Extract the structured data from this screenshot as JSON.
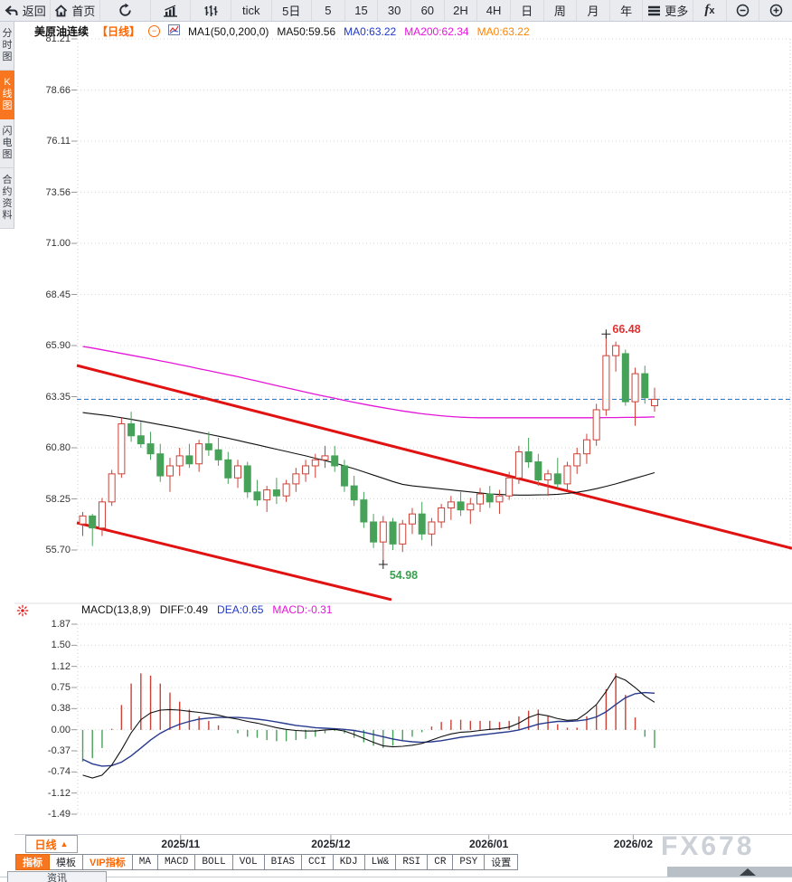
{
  "toolbar": {
    "items": [
      {
        "name": "back",
        "label": "返回",
        "icon": "back-icon"
      },
      {
        "name": "home",
        "label": "首页",
        "icon": "home-icon"
      },
      {
        "name": "refresh",
        "label": "",
        "icon": "refresh-icon"
      },
      {
        "name": "chart-style-bars",
        "label": "",
        "icon": "bar-chart-icon"
      },
      {
        "name": "chart-style-volume",
        "label": "",
        "icon": "volume-icon"
      },
      {
        "name": "tick",
        "label": "tick"
      },
      {
        "name": "period-5d",
        "label": "5日"
      },
      {
        "name": "period-5m",
        "label": "5"
      },
      {
        "name": "period-15m",
        "label": "15"
      },
      {
        "name": "period-30m",
        "label": "30"
      },
      {
        "name": "period-60m",
        "label": "60"
      },
      {
        "name": "period-2h",
        "label": "2H"
      },
      {
        "name": "period-4h",
        "label": "4H"
      },
      {
        "name": "period-day",
        "label": "日"
      },
      {
        "name": "period-week",
        "label": "周"
      },
      {
        "name": "period-month",
        "label": "月"
      },
      {
        "name": "period-year",
        "label": "年"
      },
      {
        "name": "more",
        "label": "更多",
        "icon": "menu-icon"
      },
      {
        "name": "formula",
        "label": "",
        "icon": "fx-icon"
      },
      {
        "name": "zoom-out",
        "label": "",
        "icon": "zoom-out-icon"
      },
      {
        "name": "zoom-in",
        "label": "",
        "icon": "zoom-in-icon"
      }
    ]
  },
  "sidebar": {
    "items": [
      {
        "name": "time-chart",
        "label": "分时图",
        "active": false
      },
      {
        "name": "kline-chart",
        "label": "K线图",
        "active": true
      },
      {
        "name": "flash-chart",
        "label": "闪电图",
        "active": false
      },
      {
        "name": "contract-info",
        "label": "合约资料",
        "active": false
      }
    ]
  },
  "chart_header": {
    "symbol": "美原油连续",
    "period": "【日线】",
    "ma_group": "MA1(50,0,200,0)",
    "ma50": "MA50:59.56",
    "ma0_close": "MA0:63.22",
    "ma200": "MA200:62.34",
    "ma0_open": "MA0:63.22"
  },
  "macd_header": {
    "label": "MACD(13,8,9)",
    "diff": "DIFF:0.49",
    "dea": "DEA:0.65",
    "macd": "MACD:-0.31"
  },
  "bottom": {
    "period_label": "日线",
    "period_arrow": "▲",
    "tabs": [
      {
        "label": "指标",
        "active": true,
        "cjk": true
      },
      {
        "label": "模板",
        "cjk": true
      },
      {
        "label": "VIP指标",
        "vip": true,
        "cjk": true
      },
      {
        "label": "MA"
      },
      {
        "label": "MACD"
      },
      {
        "label": "BOLL"
      },
      {
        "label": "VOL"
      },
      {
        "label": "BIAS"
      },
      {
        "label": "CCI"
      },
      {
        "label": "KDJ"
      },
      {
        "label": "LW&"
      },
      {
        "label": "RSI"
      },
      {
        "label": "CR"
      },
      {
        "label": "PSY"
      },
      {
        "label": "设置",
        "cjk": true
      }
    ],
    "news_tab": "资讯",
    "watermark": "FX678"
  },
  "chart_data": {
    "type": "candlestick",
    "title": "美原油连续 日线",
    "price_ticks": [
      "81.21",
      "78.66",
      "76.11",
      "73.56",
      "71.00",
      "68.45",
      "65.90",
      "63.35",
      "60.80",
      "58.25",
      "55.70"
    ],
    "x_labels": [
      "2025/11",
      "2025/12",
      "2026/01",
      "2026/02"
    ],
    "x_label_indices": [
      10.1,
      25.6,
      41.9,
      56.8
    ],
    "last_price": 63.22,
    "high_annotation": {
      "label": "66.48",
      "value": 66.48,
      "index": 54
    },
    "low_annotation": {
      "label": "54.98",
      "value": 54.98,
      "index": 31
    },
    "candles_ohlc": [
      [
        57.0,
        57.6,
        56.4,
        57.4
      ],
      [
        57.4,
        57.5,
        55.9,
        56.8
      ],
      [
        56.8,
        58.3,
        56.4,
        58.1
      ],
      [
        58.1,
        59.7,
        57.9,
        59.5
      ],
      [
        59.5,
        62.3,
        59.3,
        62.0
      ],
      [
        62.0,
        62.6,
        61.1,
        61.4
      ],
      [
        61.4,
        62.1,
        60.8,
        61.0
      ],
      [
        61.0,
        61.6,
        60.2,
        60.5
      ],
      [
        60.5,
        61.0,
        59.1,
        59.4
      ],
      [
        59.4,
        60.3,
        58.6,
        59.9
      ],
      [
        59.9,
        60.8,
        59.4,
        60.4
      ],
      [
        60.4,
        61.0,
        59.8,
        60.0
      ],
      [
        60.0,
        61.2,
        59.6,
        61.0
      ],
      [
        61.0,
        61.6,
        60.4,
        60.7
      ],
      [
        60.7,
        61.3,
        59.9,
        60.2
      ],
      [
        60.2,
        60.6,
        59.0,
        59.3
      ],
      [
        59.3,
        60.2,
        58.8,
        59.9
      ],
      [
        59.9,
        60.1,
        58.3,
        58.6
      ],
      [
        58.6,
        59.2,
        57.9,
        58.2
      ],
      [
        58.2,
        58.9,
        57.6,
        58.7
      ],
      [
        58.7,
        59.3,
        58.0,
        58.4
      ],
      [
        58.4,
        59.2,
        58.1,
        59.0
      ],
      [
        59.0,
        59.8,
        58.6,
        59.5
      ],
      [
        59.5,
        60.2,
        59.1,
        59.9
      ],
      [
        59.9,
        60.5,
        59.3,
        60.2
      ],
      [
        60.2,
        60.9,
        59.8,
        60.4
      ],
      [
        60.4,
        60.9,
        59.6,
        59.9
      ],
      [
        59.9,
        60.2,
        58.6,
        58.9
      ],
      [
        58.9,
        59.4,
        57.9,
        58.2
      ],
      [
        58.2,
        58.6,
        56.8,
        57.1
      ],
      [
        57.1,
        57.5,
        55.8,
        56.1
      ],
      [
        56.1,
        57.4,
        54.98,
        57.1
      ],
      [
        57.1,
        57.3,
        55.7,
        56.0
      ],
      [
        56.0,
        57.2,
        55.6,
        57.0
      ],
      [
        57.0,
        57.8,
        56.5,
        57.5
      ],
      [
        57.5,
        58.1,
        56.2,
        56.5
      ],
      [
        56.5,
        57.3,
        55.9,
        57.1
      ],
      [
        57.1,
        58.0,
        56.8,
        57.8
      ],
      [
        57.8,
        58.4,
        57.2,
        58.1
      ],
      [
        58.1,
        58.6,
        57.4,
        57.7
      ],
      [
        57.7,
        58.3,
        57.0,
        58.0
      ],
      [
        58.0,
        58.8,
        57.6,
        58.5
      ],
      [
        58.5,
        58.9,
        57.8,
        58.1
      ],
      [
        58.1,
        58.7,
        57.5,
        58.4
      ],
      [
        58.4,
        59.6,
        58.2,
        59.3
      ],
      [
        59.3,
        60.9,
        59.0,
        60.6
      ],
      [
        60.6,
        61.3,
        59.8,
        60.1
      ],
      [
        60.1,
        60.5,
        58.9,
        59.2
      ],
      [
        59.2,
        59.7,
        58.4,
        59.5
      ],
      [
        59.5,
        60.3,
        58.8,
        59.0
      ],
      [
        59.0,
        60.1,
        58.7,
        59.9
      ],
      [
        59.9,
        60.8,
        59.5,
        60.5
      ],
      [
        60.5,
        61.5,
        60.0,
        61.2
      ],
      [
        61.2,
        63.0,
        60.9,
        62.7
      ],
      [
        62.7,
        66.48,
        62.4,
        65.4
      ],
      [
        65.4,
        66.1,
        64.6,
        65.9
      ],
      [
        65.5,
        65.7,
        62.9,
        63.1
      ],
      [
        63.1,
        64.8,
        61.9,
        64.5
      ],
      [
        64.5,
        64.9,
        63.0,
        63.3
      ],
      [
        62.9,
        63.8,
        62.6,
        63.22
      ]
    ],
    "ma50": [
      62.56,
      62.5,
      62.44,
      62.38,
      62.3,
      62.22,
      62.14,
      62.05,
      61.96,
      61.87,
      61.78,
      61.68,
      61.58,
      61.48,
      61.38,
      61.28,
      61.17,
      61.06,
      60.95,
      60.84,
      60.73,
      60.62,
      60.51,
      60.4,
      60.28,
      60.16,
      60.04,
      59.9,
      59.76,
      59.6,
      59.44,
      59.28,
      59.12,
      58.98,
      58.9,
      58.85,
      58.8,
      58.75,
      58.7,
      58.65,
      58.6,
      58.55,
      58.5,
      58.47,
      58.45,
      58.44,
      58.44,
      58.45,
      58.46,
      58.48,
      58.52,
      58.58,
      58.66,
      58.76,
      58.88,
      59.0,
      59.14,
      59.28,
      59.42,
      59.56
    ],
    "ma200": [
      65.86,
      65.78,
      65.69,
      65.6,
      65.51,
      65.42,
      65.33,
      65.24,
      65.14,
      65.05,
      64.95,
      64.85,
      64.75,
      64.65,
      64.55,
      64.45,
      64.35,
      64.24,
      64.13,
      64.02,
      63.91,
      63.8,
      63.69,
      63.58,
      63.47,
      63.37,
      63.27,
      63.17,
      63.07,
      62.98,
      62.89,
      62.8,
      62.72,
      62.64,
      62.57,
      62.5,
      62.45,
      62.4,
      62.36,
      62.33,
      62.31,
      62.3,
      62.3,
      62.3,
      62.3,
      62.3,
      62.3,
      62.3,
      62.3,
      62.3,
      62.3,
      62.3,
      62.3,
      62.3,
      62.31,
      62.31,
      62.32,
      62.32,
      62.33,
      62.34
    ],
    "trendlines": [
      {
        "points": [
          [
            85,
            64.91
          ],
          [
            876,
            55.78
          ]
        ]
      },
      {
        "points": [
          [
            85,
            57.06
          ],
          [
            433,
            53.22
          ]
        ]
      }
    ],
    "macd": {
      "ticks": [
        "1.87",
        "1.50",
        "1.12",
        "0.75",
        "0.38",
        "0.00",
        "-0.37",
        "-0.74",
        "-1.12",
        "-1.49"
      ],
      "diff": [
        -0.8,
        -0.85,
        -0.8,
        -0.62,
        -0.35,
        -0.05,
        0.18,
        0.3,
        0.35,
        0.36,
        0.35,
        0.33,
        0.31,
        0.29,
        0.26,
        0.22,
        0.19,
        0.15,
        0.12,
        0.08,
        0.04,
        0.01,
        -0.01,
        -0.02,
        -0.02,
        0.0,
        0.01,
        -0.02,
        -0.08,
        -0.15,
        -0.22,
        -0.28,
        -0.3,
        -0.29,
        -0.27,
        -0.24,
        -0.18,
        -0.12,
        -0.07,
        -0.04,
        -0.03,
        -0.01,
        0.01,
        0.02,
        0.05,
        0.12,
        0.22,
        0.28,
        0.25,
        0.2,
        0.17,
        0.18,
        0.3,
        0.45,
        0.68,
        0.95,
        0.88,
        0.75,
        0.6,
        0.49
      ],
      "dea": [
        -0.52,
        -0.6,
        -0.64,
        -0.63,
        -0.57,
        -0.46,
        -0.32,
        -0.18,
        -0.06,
        0.03,
        0.1,
        0.15,
        0.19,
        0.21,
        0.22,
        0.22,
        0.22,
        0.21,
        0.19,
        0.17,
        0.14,
        0.11,
        0.08,
        0.06,
        0.04,
        0.03,
        0.02,
        0.01,
        -0.01,
        -0.04,
        -0.08,
        -0.12,
        -0.16,
        -0.19,
        -0.21,
        -0.22,
        -0.21,
        -0.19,
        -0.16,
        -0.13,
        -0.11,
        -0.09,
        -0.07,
        -0.05,
        -0.03,
        0.0,
        0.05,
        0.1,
        0.13,
        0.15,
        0.15,
        0.16,
        0.18,
        0.23,
        0.32,
        0.45,
        0.57,
        0.64,
        0.66,
        0.65
      ]
    }
  },
  "colors": {
    "up": "#cc4036",
    "down": "#46a258",
    "ma50": "#111111",
    "ma200": "#e416d8",
    "diff": "#111111",
    "dea": "#283a8e",
    "trend": "#e11212",
    "dash_line": "#2e7fd0",
    "accent": "#f7761f",
    "annotation_high": "#e03030",
    "annotation_low": "#3c9e50",
    "grid": "#d9d9d9"
  }
}
